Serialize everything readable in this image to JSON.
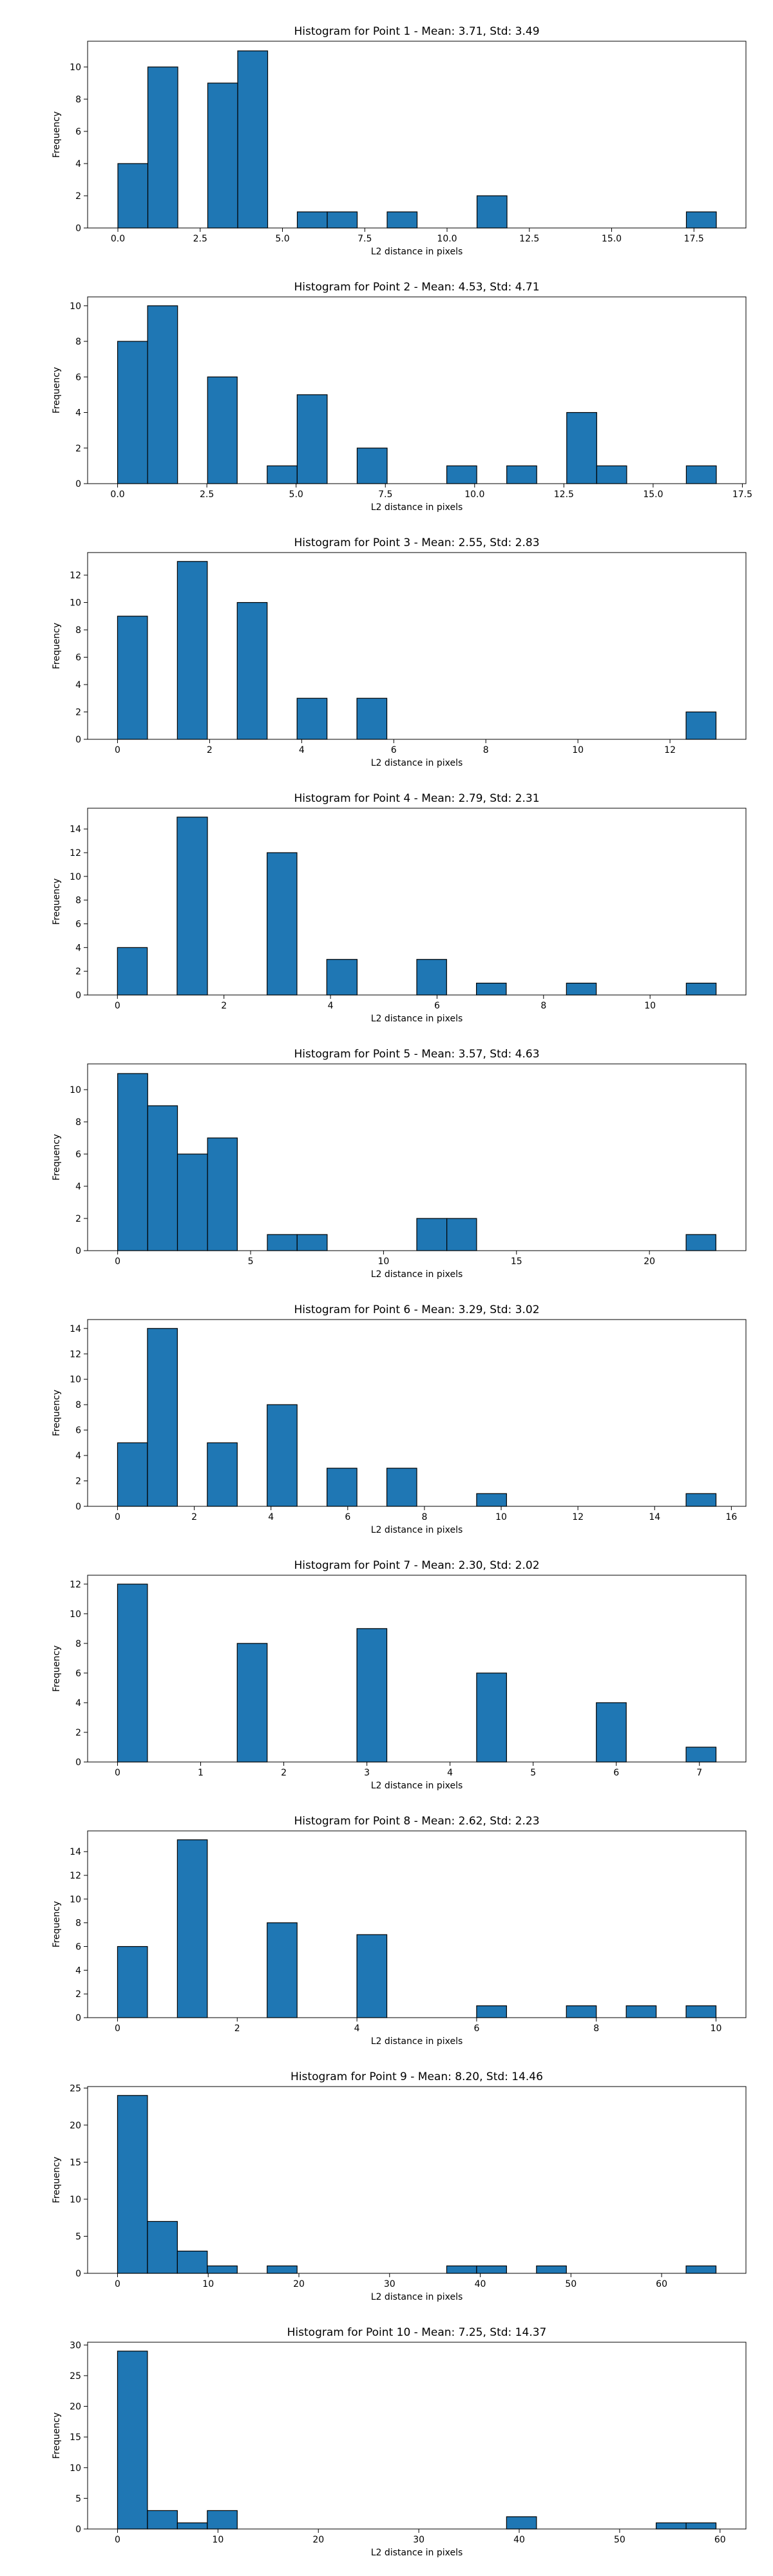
{
  "style": {
    "bar_fill": "#1f77b4",
    "bar_edge": "#000000",
    "axis_color": "#000000"
  },
  "chart_data": [
    {
      "type": "bar",
      "title": "Histogram for Point 1 - Mean: 3.71, Std: 3.49",
      "xlabel": "L2 distance in pixels",
      "ylabel": "Frequency",
      "xlim": [
        -0.92,
        19.08
      ],
      "ylim": [
        0,
        11.6
      ],
      "x_ticks": [
        0.0,
        2.5,
        5.0,
        7.5,
        10.0,
        12.5,
        15.0,
        17.5
      ],
      "x_tick_labels": [
        "0.0",
        "2.5",
        "5.0",
        "7.5",
        "10.0",
        "12.5",
        "15.0",
        "17.5"
      ],
      "y_ticks": [
        0,
        2,
        4,
        6,
        8,
        10
      ],
      "y_tick_labels": [
        "0",
        "2",
        "4",
        "6",
        "8",
        "10"
      ],
      "bin_edges": [
        0.0,
        0.91,
        1.82,
        2.73,
        3.64,
        4.55,
        5.45,
        6.36,
        7.27,
        8.18,
        9.09,
        10.0,
        10.91,
        11.82,
        12.73,
        13.64,
        14.55,
        15.45,
        16.36,
        17.27,
        18.18
      ],
      "counts": [
        4,
        10,
        0,
        9,
        11,
        0,
        1,
        1,
        0,
        1,
        0,
        0,
        2,
        0,
        0,
        0,
        0,
        0,
        0,
        1
      ],
      "grid": false
    },
    {
      "type": "bar",
      "title": "Histogram for Point 2 - Mean: 4.53, Std: 4.71",
      "xlabel": "L2 distance in pixels",
      "ylabel": "Frequency",
      "xlim": [
        -0.84,
        17.6
      ],
      "ylim": [
        0,
        10.5
      ],
      "x_ticks": [
        0.0,
        2.5,
        5.0,
        7.5,
        10.0,
        12.5,
        15.0,
        17.5
      ],
      "x_tick_labels": [
        "0.0",
        "2.5",
        "5.0",
        "7.5",
        "10.0",
        "12.5",
        "15.0",
        "17.5"
      ],
      "y_ticks": [
        0,
        2,
        4,
        6,
        8,
        10
      ],
      "y_tick_labels": [
        "0",
        "2",
        "4",
        "6",
        "8",
        "10"
      ],
      "bin_edges": [
        0.0,
        0.84,
        1.68,
        2.52,
        3.35,
        4.19,
        5.03,
        5.87,
        6.71,
        7.55,
        8.39,
        9.22,
        10.06,
        10.9,
        11.74,
        12.58,
        13.42,
        14.26,
        15.09,
        15.93,
        16.77
      ],
      "counts": [
        8,
        10,
        0,
        6,
        0,
        1,
        5,
        0,
        2,
        0,
        0,
        1,
        0,
        1,
        0,
        4,
        1,
        0,
        0,
        1
      ],
      "grid": false
    },
    {
      "type": "bar",
      "title": "Histogram for Point 3 - Mean: 2.55, Std: 2.83",
      "xlabel": "L2 distance in pixels",
      "ylabel": "Frequency",
      "xlim": [
        -0.65,
        13.65
      ],
      "ylim": [
        0,
        13.65
      ],
      "x_ticks": [
        0,
        2,
        4,
        6,
        8,
        10,
        12
      ],
      "x_tick_labels": [
        "0",
        "2",
        "4",
        "6",
        "8",
        "10",
        "12"
      ],
      "y_ticks": [
        0,
        2,
        4,
        6,
        8,
        10,
        12
      ],
      "y_tick_labels": [
        "0",
        "2",
        "4",
        "6",
        "8",
        "10",
        "12"
      ],
      "bin_edges": [
        0.0,
        0.65,
        1.3,
        1.95,
        2.6,
        3.25,
        3.9,
        4.55,
        5.2,
        5.85,
        6.5,
        7.15,
        7.8,
        8.45,
        9.1,
        9.75,
        10.4,
        11.05,
        11.7,
        12.35,
        13.0
      ],
      "counts": [
        9,
        0,
        13,
        0,
        10,
        0,
        3,
        0,
        3,
        0,
        0,
        0,
        0,
        0,
        0,
        0,
        0,
        0,
        0,
        2
      ],
      "grid": false
    },
    {
      "type": "bar",
      "title": "Histogram for Point 4 - Mean: 2.79, Std: 2.31",
      "xlabel": "L2 distance in pixels",
      "ylabel": "Frequency",
      "xlim": [
        -0.56,
        11.8
      ],
      "ylim": [
        0,
        15.75
      ],
      "x_ticks": [
        0,
        2,
        4,
        6,
        8,
        10
      ],
      "x_tick_labels": [
        "0",
        "2",
        "4",
        "6",
        "8",
        "10"
      ],
      "y_ticks": [
        0,
        2,
        4,
        6,
        8,
        10,
        12,
        14
      ],
      "y_tick_labels": [
        "0",
        "2",
        "4",
        "6",
        "8",
        "10",
        "12",
        "14"
      ],
      "bin_edges": [
        0.0,
        0.56,
        1.12,
        1.69,
        2.25,
        2.81,
        3.37,
        3.93,
        4.5,
        5.06,
        5.62,
        6.18,
        6.74,
        7.3,
        7.87,
        8.43,
        8.99,
        9.55,
        10.11,
        10.68,
        11.24
      ],
      "counts": [
        4,
        0,
        15,
        0,
        0,
        12,
        0,
        3,
        0,
        0,
        3,
        0,
        1,
        0,
        0,
        1,
        0,
        0,
        0,
        1
      ],
      "grid": false
    },
    {
      "type": "bar",
      "title": "Histogram for Point 5 - Mean: 3.57, Std: 4.63",
      "xlabel": "L2 distance in pixels",
      "ylabel": "Frequency",
      "xlim": [
        -1.13,
        23.63
      ],
      "ylim": [
        0,
        11.6
      ],
      "x_ticks": [
        0,
        5,
        10,
        15,
        20
      ],
      "x_tick_labels": [
        "0",
        "5",
        "10",
        "15",
        "20"
      ],
      "y_ticks": [
        0,
        2,
        4,
        6,
        8,
        10
      ],
      "y_tick_labels": [
        "0",
        "2",
        "4",
        "6",
        "8",
        "10"
      ],
      "bin_edges": [
        0.0,
        1.13,
        2.25,
        3.38,
        4.5,
        5.63,
        6.75,
        7.88,
        9.0,
        10.13,
        11.25,
        12.38,
        13.5,
        14.63,
        15.75,
        16.88,
        18.0,
        19.13,
        20.25,
        21.38,
        22.5
      ],
      "counts": [
        11,
        9,
        6,
        7,
        0,
        1,
        1,
        0,
        0,
        0,
        2,
        2,
        0,
        0,
        0,
        0,
        0,
        0,
        0,
        1
      ],
      "grid": false
    },
    {
      "type": "bar",
      "title": "Histogram for Point 6 - Mean: 3.29, Std: 3.02",
      "xlabel": "L2 distance in pixels",
      "ylabel": "Frequency",
      "xlim": [
        -0.78,
        16.38
      ],
      "ylim": [
        0,
        14.7
      ],
      "x_ticks": [
        0,
        2,
        4,
        6,
        8,
        10,
        12,
        14,
        16
      ],
      "x_tick_labels": [
        "0",
        "2",
        "4",
        "6",
        "8",
        "10",
        "12",
        "14",
        "16"
      ],
      "y_ticks": [
        0,
        2,
        4,
        6,
        8,
        10,
        12,
        14
      ],
      "y_tick_labels": [
        "0",
        "2",
        "4",
        "6",
        "8",
        "10",
        "12",
        "14"
      ],
      "bin_edges": [
        0.0,
        0.78,
        1.56,
        2.34,
        3.12,
        3.9,
        4.68,
        5.46,
        6.24,
        7.02,
        7.8,
        8.58,
        9.36,
        10.14,
        10.92,
        11.7,
        12.48,
        13.26,
        14.04,
        14.82,
        15.6
      ],
      "counts": [
        5,
        14,
        0,
        5,
        0,
        8,
        0,
        3,
        0,
        3,
        0,
        0,
        1,
        0,
        0,
        0,
        0,
        0,
        0,
        1
      ],
      "grid": false
    },
    {
      "type": "bar",
      "title": "Histogram for Point 7 - Mean: 2.30, Std: 2.02",
      "xlabel": "L2 distance in pixels",
      "ylabel": "Frequency",
      "xlim": [
        -0.36,
        7.56
      ],
      "ylim": [
        0,
        12.6
      ],
      "x_ticks": [
        0,
        1,
        2,
        3,
        4,
        5,
        6,
        7
      ],
      "x_tick_labels": [
        "0",
        "1",
        "2",
        "3",
        "4",
        "5",
        "6",
        "7"
      ],
      "y_ticks": [
        0,
        2,
        4,
        6,
        8,
        10,
        12
      ],
      "y_tick_labels": [
        "0",
        "2",
        "4",
        "6",
        "8",
        "10",
        "12"
      ],
      "bin_edges": [
        0.0,
        0.36,
        0.72,
        1.08,
        1.44,
        1.8,
        2.16,
        2.52,
        2.88,
        3.24,
        3.6,
        3.96,
        4.32,
        4.68,
        5.04,
        5.4,
        5.76,
        6.12,
        6.48,
        6.84,
        7.2
      ],
      "counts": [
        12,
        0,
        0,
        0,
        8,
        0,
        0,
        0,
        9,
        0,
        0,
        0,
        6,
        0,
        0,
        0,
        4,
        0,
        0,
        1
      ],
      "grid": false
    },
    {
      "type": "bar",
      "title": "Histogram for Point 8 - Mean: 2.62, Std: 2.23",
      "xlabel": "L2 distance in pixels",
      "ylabel": "Frequency",
      "xlim": [
        -0.5,
        10.5
      ],
      "ylim": [
        0,
        15.75
      ],
      "x_ticks": [
        0,
        2,
        4,
        6,
        8,
        10
      ],
      "x_tick_labels": [
        "0",
        "2",
        "4",
        "6",
        "8",
        "10"
      ],
      "y_ticks": [
        0,
        2,
        4,
        6,
        8,
        10,
        12,
        14
      ],
      "y_tick_labels": [
        "0",
        "2",
        "4",
        "6",
        "8",
        "10",
        "12",
        "14"
      ],
      "bin_edges": [
        0.0,
        0.5,
        1.0,
        1.5,
        2.0,
        2.5,
        3.0,
        3.5,
        4.0,
        4.5,
        5.0,
        5.5,
        6.0,
        6.5,
        7.0,
        7.5,
        8.0,
        8.5,
        9.0,
        9.5,
        10.0
      ],
      "counts": [
        6,
        0,
        15,
        0,
        0,
        8,
        0,
        0,
        7,
        0,
        0,
        0,
        1,
        0,
        0,
        1,
        0,
        1,
        0,
        1
      ],
      "grid": false
    },
    {
      "type": "bar",
      "title": "Histogram for Point 9 - Mean: 8.20, Std: 14.46",
      "xlabel": "L2 distance in pixels",
      "ylabel": "Frequency",
      "xlim": [
        -3.3,
        69.3
      ],
      "ylim": [
        0,
        25.2
      ],
      "x_ticks": [
        0,
        10,
        20,
        30,
        40,
        50,
        60
      ],
      "x_tick_labels": [
        "0",
        "10",
        "20",
        "30",
        "40",
        "50",
        "60"
      ],
      "y_ticks": [
        0,
        5,
        10,
        15,
        20,
        25
      ],
      "y_tick_labels": [
        "0",
        "5",
        "10",
        "15",
        "20",
        "25"
      ],
      "bin_edges": [
        0.0,
        3.3,
        6.6,
        9.9,
        13.2,
        16.5,
        19.8,
        23.1,
        26.4,
        29.7,
        33.0,
        36.3,
        39.6,
        42.9,
        46.2,
        49.5,
        52.8,
        56.1,
        59.4,
        62.7,
        66.0
      ],
      "counts": [
        24,
        7,
        3,
        1,
        0,
        1,
        0,
        0,
        0,
        0,
        0,
        1,
        1,
        0,
        1,
        0,
        0,
        0,
        0,
        1
      ],
      "grid": false
    },
    {
      "type": "bar",
      "title": "Histogram for Point 10 - Mean: 7.25, Std: 14.37",
      "xlabel": "L2 distance in pixels",
      "ylabel": "Frequency",
      "xlim": [
        -2.98,
        62.58
      ],
      "ylim": [
        0,
        30.45
      ],
      "x_ticks": [
        0,
        10,
        20,
        30,
        40,
        50,
        60
      ],
      "x_tick_labels": [
        "0",
        "10",
        "20",
        "30",
        "40",
        "50",
        "60"
      ],
      "y_ticks": [
        0,
        5,
        10,
        15,
        20,
        25,
        30
      ],
      "y_tick_labels": [
        "0",
        "5",
        "10",
        "15",
        "20",
        "25",
        "30"
      ],
      "bin_edges": [
        0.0,
        2.98,
        5.96,
        8.94,
        11.92,
        14.9,
        17.88,
        20.86,
        23.84,
        26.82,
        29.8,
        32.78,
        35.76,
        38.74,
        41.72,
        44.7,
        47.68,
        50.66,
        53.64,
        56.62,
        59.6
      ],
      "counts": [
        29,
        3,
        1,
        3,
        0,
        0,
        0,
        0,
        0,
        0,
        0,
        0,
        0,
        2,
        0,
        0,
        0,
        0,
        1,
        1
      ],
      "grid": false
    }
  ]
}
